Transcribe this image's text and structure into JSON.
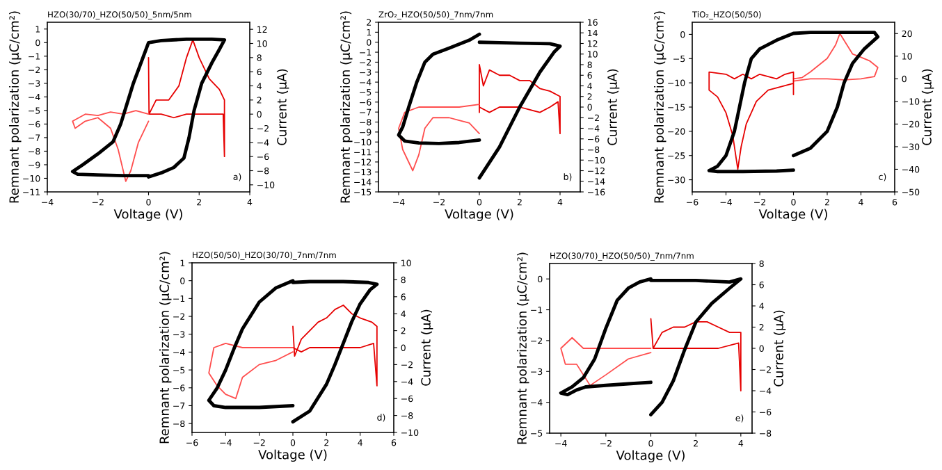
{
  "chart_data": [
    {
      "type": "line",
      "title": "HZO(30/70)_HZO(50/50)_5nm/5nm",
      "xlabel": "Voltage (V)",
      "ylabel": "Remnant polarization (μC/cm²)",
      "y2label": "Current (μA)",
      "annotations": [
        "a)"
      ],
      "xlim": [
        -4,
        4
      ],
      "xticks": [
        -4,
        -2,
        0,
        2,
        4
      ],
      "ylim": [
        -11,
        1.5
      ],
      "yticks": [
        -11,
        -10,
        -9,
        -8,
        -7,
        -6,
        -5,
        -4,
        -3,
        -2,
        -1,
        0,
        1
      ],
      "y2lim": [
        -11,
        13
      ],
      "y2ticks": [
        -10,
        -8,
        -6,
        -4,
        -2,
        0,
        2,
        4,
        6,
        8,
        10,
        12
      ],
      "series": [
        {
          "color": "#000000",
          "x": [
            0,
            0.5,
            1,
            1.4,
            1.6,
            1.8,
            2.1,
            2.5,
            2.8,
            3,
            2.5,
            1.5,
            0.5,
            0,
            -0.3,
            -0.6,
            -0.9,
            -1.1,
            -1.4,
            -2,
            -2.6,
            -3,
            -2.8,
            -2,
            -1,
            0
          ],
          "values": [
            -9.9,
            -9.6,
            -9.2,
            -8.5,
            -7,
            -5,
            -3,
            -1.5,
            -0.5,
            0.2,
            0.25,
            0.25,
            0.15,
            0,
            -1.5,
            -3,
            -4.8,
            -6,
            -7.3,
            -8.2,
            -9,
            -9.5,
            -9.7,
            -9.75,
            -9.8,
            -9.8
          ]
        },
        {
          "color": "#e60000",
          "axis": "y2",
          "x": [
            0,
            0.02,
            0.3,
            0.8,
            1.2,
            1.5,
            1.75,
            2,
            2.4,
            2.8,
            3,
            3,
            2.95,
            2.5,
            2,
            1.5,
            1,
            0.5,
            0.05
          ],
          "values": [
            8,
            0,
            2,
            2,
            4,
            8,
            10.5,
            8,
            5,
            3.5,
            2,
            -6,
            0,
            0,
            0,
            0,
            -0.5,
            0,
            0
          ]
        },
        {
          "color": "#ff4d4d",
          "axis": "y2",
          "x": [
            0,
            -0.5,
            -1,
            -1.5,
            -2,
            -2.5,
            -3,
            -2.9,
            -2.5,
            -2,
            -1.5,
            -1.2,
            -0.9,
            -0.7,
            -0.4,
            0
          ],
          "values": [
            0,
            0.5,
            0,
            0.3,
            -0.2,
            0,
            -1,
            -2,
            -1,
            -0.5,
            -2,
            -5,
            -9.5,
            -8,
            -4,
            -1
          ]
        }
      ]
    },
    {
      "type": "line",
      "title": "ZrO₂_HZO(50/50)_7nm/7nm",
      "xlabel": "Voltage (V)",
      "ylabel": "Remnant polarization (μC/cm²)",
      "y2label": "Current (μA)",
      "annotations": [
        "b)"
      ],
      "xlim": [
        -5,
        5
      ],
      "xticks": [
        -4,
        -2,
        0,
        2,
        4
      ],
      "ylim": [
        -15,
        2
      ],
      "yticks": [
        -15,
        -14,
        -13,
        -12,
        -11,
        -10,
        -9,
        -8,
        -7,
        -6,
        -5,
        -4,
        -3,
        -2,
        -1,
        0,
        1,
        2
      ],
      "y2lim": [
        -16,
        16
      ],
      "y2ticks": [
        -16,
        -14,
        -12,
        -10,
        -8,
        -6,
        -4,
        -2,
        0,
        2,
        4,
        6,
        8,
        10,
        12,
        14,
        16
      ],
      "series": [
        {
          "color": "#000000",
          "x": [
            0,
            1,
            2,
            3,
            3.7,
            4,
            3.5,
            2,
            1,
            0
          ],
          "values": [
            -13.6,
            -10.5,
            -6.5,
            -3,
            -1,
            -0.4,
            -0.15,
            -0.1,
            -0.05,
            0
          ]
        },
        {
          "color": "#000000",
          "x": [
            0,
            -0.5,
            -1.5,
            -2.3,
            -2.7,
            -3.1,
            -3.5,
            -3.8,
            -4,
            -3.7,
            -3,
            -2,
            -1,
            0
          ],
          "values": [
            0.8,
            0.2,
            -0.6,
            -1.2,
            -2,
            -4,
            -6.5,
            -8.5,
            -9.3,
            -9.9,
            -10.1,
            -10.15,
            -10.05,
            -9.8
          ]
        },
        {
          "color": "#e60000",
          "axis": "y2",
          "x": [
            0,
            0,
            0.2,
            0.5,
            1,
            1.5,
            2,
            2.5,
            3,
            3.5,
            4,
            4,
            3.9,
            3.5,
            3,
            2,
            1,
            0.5,
            0
          ],
          "values": [
            -1,
            8,
            4,
            7,
            6,
            6,
            5,
            5,
            3.5,
            3,
            2,
            -5,
            1,
            0,
            -1,
            0,
            0,
            -1,
            0
          ]
        },
        {
          "color": "#ff4d4d",
          "axis": "y2",
          "x": [
            0,
            -1,
            -2,
            -3,
            -3.7,
            -4,
            -3.8,
            -3.3,
            -3,
            -2.7,
            -2.3,
            -1.5,
            -1,
            -0.5,
            0
          ],
          "values": [
            0.5,
            0,
            0,
            0,
            -1,
            -4,
            -8,
            -12,
            -9,
            -4,
            -2,
            -2,
            -2.5,
            -3,
            -5
          ]
        }
      ]
    },
    {
      "type": "line",
      "title": "TiO₂_HZO(50/50)",
      "xlabel": "Voltage (V)",
      "ylabel": "Remnant polarization (μC/cm²)",
      "y2label": "Current (μA)",
      "annotations": [
        "c)"
      ],
      "xlim": [
        -6,
        6
      ],
      "xticks": [
        -6,
        -4,
        -2,
        0,
        2,
        4,
        6
      ],
      "ylim": [
        -32.5,
        2.5
      ],
      "yticks": [
        -30,
        -25,
        -20,
        -15,
        -10,
        -5,
        0
      ],
      "y2lim": [
        -50,
        25
      ],
      "y2ticks": [
        -50,
        -40,
        -30,
        -20,
        -10,
        0,
        10,
        20
      ],
      "series": [
        {
          "color": "#000000",
          "x": [
            0,
            1,
            2,
            2.6,
            3,
            3.5,
            4.2,
            5,
            4.8,
            3,
            1,
            0,
            -1,
            -2,
            -2.5,
            -2.9,
            -3.2,
            -3.5,
            -4,
            -4.5,
            -5,
            -4.5,
            -3,
            -1,
            0
          ],
          "values": [
            -25,
            -23.5,
            -20,
            -15,
            -10,
            -6,
            -3,
            -0.5,
            0.4,
            0.4,
            0.4,
            0.2,
            -1.2,
            -3,
            -5,
            -10,
            -15,
            -20,
            -25,
            -27.2,
            -28.1,
            -28.3,
            -28.3,
            -28.2,
            -28
          ]
        },
        {
          "color": "#ff4d4d",
          "axis": "y2",
          "x": [
            0,
            0.5,
            1,
            1.5,
            2,
            2.5,
            2.75,
            3,
            3.5,
            4,
            4.5,
            5,
            4.8,
            4,
            3,
            2,
            1,
            0
          ],
          "values": [
            0,
            0.5,
            3,
            6,
            9,
            15,
            20,
            17,
            11,
            9.5,
            8,
            5,
            1,
            0,
            -0.5,
            0,
            0,
            -1
          ]
        },
        {
          "color": "#e60000",
          "axis": "y2",
          "x": [
            0,
            0,
            -0.5,
            -1,
            -2,
            -2.5,
            -3,
            -3.5,
            -4,
            -5,
            -5,
            -4.5,
            -4,
            -3.6,
            -3.3,
            -3.1,
            -2.8,
            -2.2,
            -1.5,
            -0.5,
            0
          ],
          "values": [
            -7,
            3,
            2,
            0,
            2,
            0,
            2,
            0,
            2,
            3,
            -5,
            -8,
            -15,
            -25,
            -40,
            -30,
            -20,
            -10,
            -5,
            -3,
            -2
          ]
        }
      ]
    },
    {
      "type": "line",
      "title": "HZO(50/50)_HZO(30/70)_7nm/7nm",
      "xlabel": "Voltage (V)",
      "ylabel": "Remnant polarization (μC/cm²)",
      "y2label": "Current (μA)",
      "annotations": [
        "d)"
      ],
      "xlim": [
        -6,
        6
      ],
      "xticks": [
        -6,
        -4,
        -2,
        0,
        2,
        4,
        6
      ],
      "ylim": [
        -8.5,
        1
      ],
      "yticks": [
        -8,
        -7,
        -6,
        -5,
        -4,
        -3,
        -2,
        -1,
        0,
        1
      ],
      "y2lim": [
        -10,
        10
      ],
      "y2ticks": [
        -10,
        -8,
        -6,
        -4,
        -2,
        0,
        2,
        4,
        6,
        8,
        10
      ],
      "series": [
        {
          "color": "#000000",
          "x": [
            0,
            1,
            2,
            2.5,
            3,
            3.5,
            4,
            4.6,
            5,
            4.5,
            3,
            1,
            0
          ],
          "values": [
            -7.9,
            -7.3,
            -5.8,
            -4.7,
            -3.5,
            -2.3,
            -1.3,
            -0.5,
            -0.2,
            -0.1,
            -0.05,
            -0.05,
            -0.1
          ]
        },
        {
          "color": "#000000",
          "x": [
            0,
            -1,
            -2,
            -3,
            -3.5,
            -4,
            -4.5,
            -5,
            -4.7,
            -4,
            -2,
            0
          ],
          "values": [
            0,
            -0.4,
            -1.2,
            -2.7,
            -3.8,
            -5,
            -6,
            -6.7,
            -7,
            -7.1,
            -7.1,
            -7
          ]
        },
        {
          "color": "#e60000",
          "axis": "y2",
          "x": [
            0,
            0.1,
            0.5,
            1,
            1.5,
            2,
            2.5,
            3,
            3.5,
            4,
            4.7,
            5,
            5,
            4.8,
            4,
            3,
            2,
            1,
            0.5,
            0
          ],
          "values": [
            2.5,
            -1,
            1,
            2,
            3,
            3.5,
            4.5,
            5,
            4,
            3.5,
            3,
            2.5,
            -4.5,
            0.5,
            0,
            0,
            0,
            0,
            -0.5,
            0
          ]
        },
        {
          "color": "#ff4d4d",
          "axis": "y2",
          "x": [
            0,
            -1,
            -2,
            -3,
            -4,
            -4.7,
            -5,
            -4.5,
            -4,
            -3.4,
            -3,
            -2,
            -1,
            0
          ],
          "values": [
            0,
            0,
            0,
            0,
            0.5,
            0,
            -3,
            -4.5,
            -5.5,
            -6,
            -3.5,
            -2,
            -1.5,
            -0.5
          ]
        }
      ]
    },
    {
      "type": "line",
      "title": "HZO(30/70)_HZO(50/50)_7nm/7nm",
      "xlabel": "Voltage (V)",
      "ylabel": "Remnant polarization (μC/cm²)",
      "y2label": "Current (μA)",
      "annotations": [
        "e)"
      ],
      "xlim": [
        -4.5,
        4.5
      ],
      "xticks": [
        -4,
        -2,
        0,
        2,
        4
      ],
      "ylim": [
        -5,
        0.5
      ],
      "yticks": [
        -5,
        -4,
        -3,
        -2,
        -1,
        0
      ],
      "y2lim": [
        -8,
        8
      ],
      "y2ticks": [
        -8,
        -6,
        -4,
        -2,
        0,
        2,
        4,
        6,
        8
      ],
      "series": [
        {
          "color": "#000000",
          "x": [
            0,
            0.5,
            1,
            1.5,
            2,
            2.7,
            3.5,
            4,
            3.5,
            2,
            1,
            0
          ],
          "values": [
            -4.4,
            -4,
            -3.3,
            -2.3,
            -1.4,
            -0.8,
            -0.3,
            0,
            -0.1,
            -0.05,
            -0.05,
            -0.05
          ]
        },
        {
          "color": "#000000",
          "x": [
            0,
            -0.5,
            -1,
            -1.5,
            -2,
            -2.5,
            -3,
            -3.5,
            -4,
            -3.7,
            -3.3,
            -2.9,
            -2,
            -1,
            0
          ],
          "values": [
            0,
            -0.1,
            -0.3,
            -0.7,
            -1.6,
            -2.6,
            -3.2,
            -3.5,
            -3.7,
            -3.75,
            -3.6,
            -3.5,
            -3.45,
            -3.4,
            -3.35
          ]
        },
        {
          "color": "#e60000",
          "axis": "y2",
          "x": [
            0,
            0.1,
            0.5,
            1,
            1.5,
            2,
            2.5,
            3,
            3.5,
            4,
            4,
            3.9,
            3,
            2,
            1,
            0.1
          ],
          "values": [
            2.8,
            0,
            1.5,
            2,
            2,
            2.5,
            2.5,
            2,
            1.5,
            1.5,
            -4,
            0.5,
            0,
            0,
            0,
            0
          ]
        },
        {
          "color": "#ff4d4d",
          "axis": "y2",
          "x": [
            0,
            -1,
            -2,
            -3,
            -3.5,
            -4,
            -3.8,
            -3.3,
            -3,
            -2.7,
            -2,
            -1,
            0
          ],
          "values": [
            0,
            0,
            0,
            0,
            1,
            0,
            -1.5,
            -1.5,
            -2.5,
            -3.5,
            -2.5,
            -1,
            -0.4
          ]
        }
      ]
    }
  ]
}
